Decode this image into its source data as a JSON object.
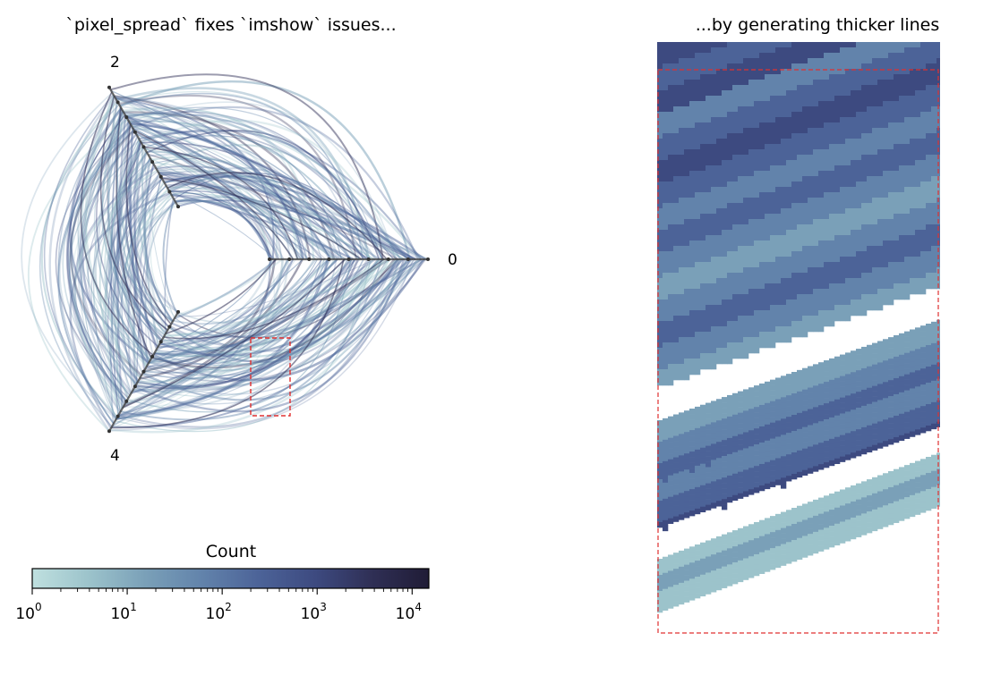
{
  "chart_data": [
    {
      "type": "hive_plot",
      "title": "`pixel_spread` fixes `imshow` issues...",
      "axes": [
        {
          "label": "0",
          "angle_deg": 0
        },
        {
          "label": "2",
          "angle_deg": 120
        },
        {
          "label": "4",
          "angle_deg": 240
        }
      ],
      "edge_color_scale": "log count",
      "zoom_region": {
        "color": "#e03030",
        "style": "dashed"
      },
      "colorbar": {
        "label": "Count",
        "scale": "log",
        "range": [
          1,
          15000
        ],
        "ticks": [
          {
            "base": "10",
            "exp": "0"
          },
          {
            "base": "10",
            "exp": "1"
          },
          {
            "base": "10",
            "exp": "2"
          },
          {
            "base": "10",
            "exp": "3"
          },
          {
            "base": "10",
            "exp": "4"
          }
        ],
        "colors": [
          "#bfe0df",
          "#9cc3cb",
          "#7aa0b8",
          "#6283ab",
          "#4c6398",
          "#3d4a80",
          "#2f2f55",
          "#201c36"
        ]
      }
    },
    {
      "type": "heatmap",
      "title": "...by generating thicker lines",
      "description_of_content": "zoomed view of edges"
    }
  ]
}
